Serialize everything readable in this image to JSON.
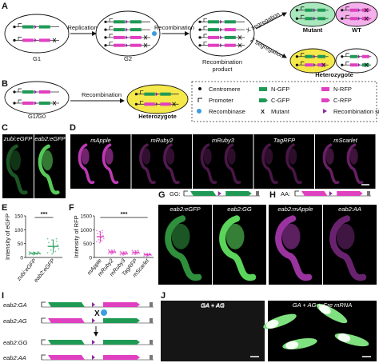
{
  "panels": {
    "A": {
      "label": "A",
      "g1": "G1",
      "replication": "Replication",
      "g2": "G2",
      "recombination": "Recombination",
      "product": [
        "Recombination",
        "product"
      ],
      "x_segregation": "X segregation",
      "z_segregation": "Z segregation",
      "mutant": "Mutant",
      "wt": "WT",
      "heterozygote": "Heterozygote"
    },
    "B": {
      "label": "B",
      "g1g0": "G1/G0",
      "recombination": "Recombination",
      "heterozygote": "Heterozygote"
    },
    "legend": {
      "items": [
        "Centromere",
        "Promoter",
        "Recombinase",
        "N-GFP",
        "C-GFP",
        "Mutant",
        "N-RFP",
        "C-RFP",
        "Recombination sites"
      ],
      "mutant_symbol": "X"
    },
    "C": {
      "label": "C",
      "images": [
        "zubi:eGFP",
        "eab2:eGFP"
      ]
    },
    "D": {
      "label": "D",
      "images": [
        "mApple",
        "mRuby2",
        "mRuby3",
        "TagRFP",
        "mScarlet"
      ]
    },
    "E": {
      "label": "E",
      "type": "dot",
      "ylabel": "Intensity of eGFP",
      "categories": [
        "zubi:eGFP",
        "eab2:eGFP"
      ],
      "values": [
        15,
        40
      ],
      "errors": [
        5,
        25
      ],
      "ylim": [
        0,
        150
      ],
      "yticks": [
        0,
        50,
        100,
        150
      ],
      "significance": "***",
      "color": "#2ca25f"
    },
    "F": {
      "label": "F",
      "type": "dot",
      "ylabel": "Intensity of RFP",
      "categories": [
        "mApple",
        "mRuby2",
        "mRuby3",
        "TagRFP",
        "mScarlet"
      ],
      "values": [
        750,
        200,
        150,
        180,
        100
      ],
      "errors": [
        200,
        70,
        60,
        70,
        50
      ],
      "ylim": [
        0,
        1500
      ],
      "yticks": [
        0,
        500,
        1000,
        1500
      ],
      "significance": "***",
      "color": "#e040c0"
    },
    "G": {
      "label": "G",
      "construct": "GG:",
      "images": [
        "eab2:eGFP",
        "eab2:GG"
      ]
    },
    "H": {
      "label": "H",
      "construct": "AA:",
      "images": [
        "eab2:mApple",
        "eab2:AA"
      ]
    },
    "I": {
      "label": "I",
      "constructs": [
        "eab2:GA",
        "eab2:AG",
        "eab2:GG",
        "eab2:AA"
      ],
      "mutant_symbol": "X"
    },
    "J": {
      "label": "J",
      "images": [
        "GA + AG",
        "GA + AG + Cre mRNA"
      ]
    }
  }
}
